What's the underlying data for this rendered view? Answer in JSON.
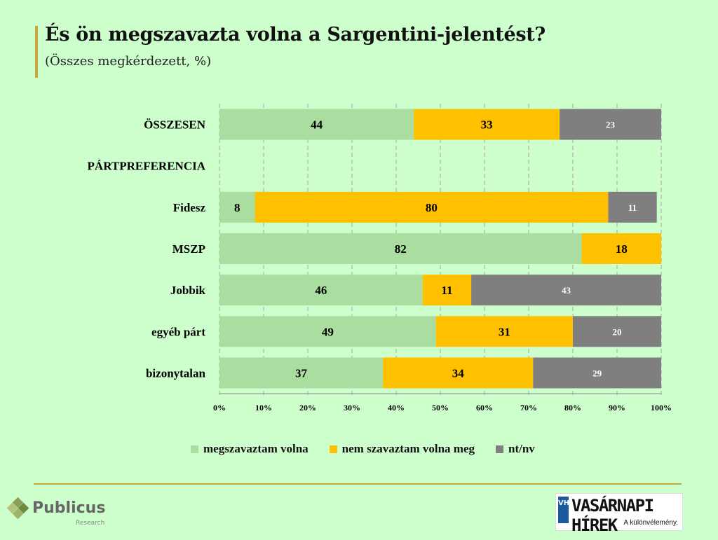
{
  "header": {
    "title": "És ön megszavazta volna a Sargentini-jelentést?",
    "subtitle": "(Összes megkérdezett, %)"
  },
  "colors": {
    "background": "#ccffcc",
    "accent_rule": "#c8a83a",
    "yes": "#a9dea0",
    "no": "#ffc000",
    "dk": "#7f7f7f",
    "grid": "#a6a6a6"
  },
  "chart_data": {
    "type": "bar",
    "orientation": "horizontal",
    "stacked": "percent",
    "categories": [
      "ÖSSZESEN",
      "PÁRTPREFERENCIA",
      "Fidesz",
      "MSZP",
      "Jobbik",
      "egyéb párt",
      "bizonytalan"
    ],
    "series": [
      {
        "name": "megszavaztam volna",
        "color": "#a9dea0",
        "values": [
          44,
          null,
          8,
          82,
          46,
          49,
          37
        ]
      },
      {
        "name": "nem szavaztam volna meg",
        "color": "#ffc000",
        "values": [
          33,
          null,
          80,
          18,
          11,
          31,
          34
        ]
      },
      {
        "name": "nt/nv",
        "color": "#7f7f7f",
        "values": [
          23,
          null,
          11,
          null,
          43,
          20,
          29
        ]
      }
    ],
    "xlim": [
      0,
      100
    ],
    "xticks": [
      "0%",
      "10%",
      "20%",
      "30%",
      "40%",
      "50%",
      "60%",
      "70%",
      "80%",
      "90%",
      "100%"
    ],
    "grid": "vertical dashed",
    "legend": "bottom"
  },
  "logos": {
    "left_name": "Publicus",
    "left_sub": "Research",
    "right_vh": "VH",
    "right_brand": "VASÁRNAPI HÍREK",
    "right_tagline": "A különvélemény."
  }
}
